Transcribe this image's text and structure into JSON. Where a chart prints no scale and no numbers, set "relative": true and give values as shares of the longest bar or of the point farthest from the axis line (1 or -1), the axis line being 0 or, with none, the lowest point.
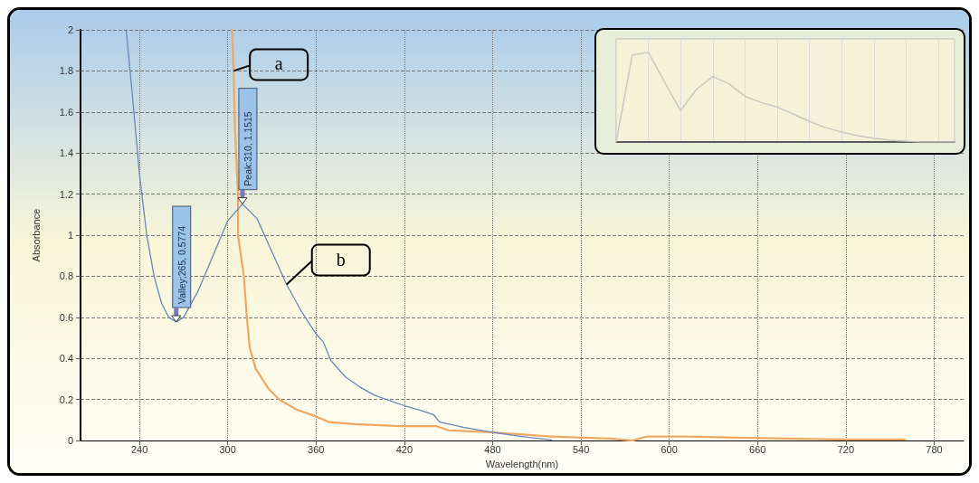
{
  "chart_data": [
    {
      "type": "line",
      "xlabel": "Wavelength(nm)",
      "ylabel": "Absorbance",
      "xlim": [
        200,
        800
      ],
      "xticks": [
        240,
        300,
        360,
        420,
        480,
        540,
        600,
        660,
        720,
        780
      ],
      "ylim": [
        0,
        2
      ],
      "yticks": [
        0,
        0.2,
        0.4,
        0.6,
        0.8,
        1,
        1.2,
        1.4,
        1.6,
        1.8,
        2
      ],
      "grid": true,
      "legend": false,
      "marker": "none",
      "line_style": "solid",
      "series": [
        {
          "name": "a",
          "color": "#f0a860",
          "x": [
            303,
            304,
            305,
            307,
            307,
            311,
            313,
            315,
            319,
            328,
            335,
            347,
            359,
            369,
            386,
            417,
            442,
            450,
            480,
            520,
            560,
            575,
            585,
            610,
            640,
            680,
            720,
            760
          ],
          "values": [
            2.0,
            1.8,
            1.5,
            1.2,
            1.0,
            0.8,
            0.6,
            0.45,
            0.35,
            0.25,
            0.2,
            0.15,
            0.12,
            0.09,
            0.08,
            0.07,
            0.07,
            0.05,
            0.04,
            0.02,
            0.01,
            0,
            0.02,
            0.02,
            0.015,
            0.01,
            0.005,
            0.005
          ]
        },
        {
          "name": "b",
          "color": "#6a86b8",
          "x": [
            231,
            235,
            240,
            245,
            250,
            255,
            260,
            265,
            270,
            280,
            290,
            300,
            310,
            320,
            330,
            340,
            350,
            360,
            365,
            370,
            380,
            390,
            400,
            410,
            420,
            430,
            440,
            444,
            460,
            480,
            500,
            520
          ],
          "values": [
            2.0,
            1.7,
            1.3,
            1.0,
            0.8,
            0.67,
            0.6,
            0.5774,
            0.6,
            0.73,
            0.9,
            1.07,
            1.1515,
            1.08,
            0.92,
            0.76,
            0.63,
            0.52,
            0.48,
            0.39,
            0.31,
            0.26,
            0.22,
            0.195,
            0.17,
            0.15,
            0.125,
            0.09,
            0.065,
            0.04,
            0.02,
            0.003
          ]
        }
      ],
      "annotations": [
        {
          "text": "Peak:310, 1.1515",
          "x": 310,
          "y": 1.1515
        },
        {
          "text": "Valley;265, 0.5774",
          "x": 265,
          "y": 0.5774
        }
      ]
    },
    {
      "type": "line",
      "relative": true,
      "grid": true,
      "legend": false,
      "marker": "none",
      "categories": [
        null,
        null,
        null,
        null,
        null,
        null,
        null,
        null,
        null,
        null,
        null,
        null,
        null,
        null,
        null,
        null,
        null,
        null,
        null,
        null,
        null,
        null
      ],
      "series": [
        {
          "color": "#c8c8c0",
          "values": [
            0,
            0.97,
            1.0,
            0.67,
            0.35,
            0.59,
            0.73,
            0.65,
            0.51,
            0.44,
            0.39,
            0.31,
            0.23,
            0.16,
            0.11,
            0.07,
            0.04,
            0.02,
            0.01,
            0,
            0,
            0
          ]
        }
      ]
    }
  ]
}
